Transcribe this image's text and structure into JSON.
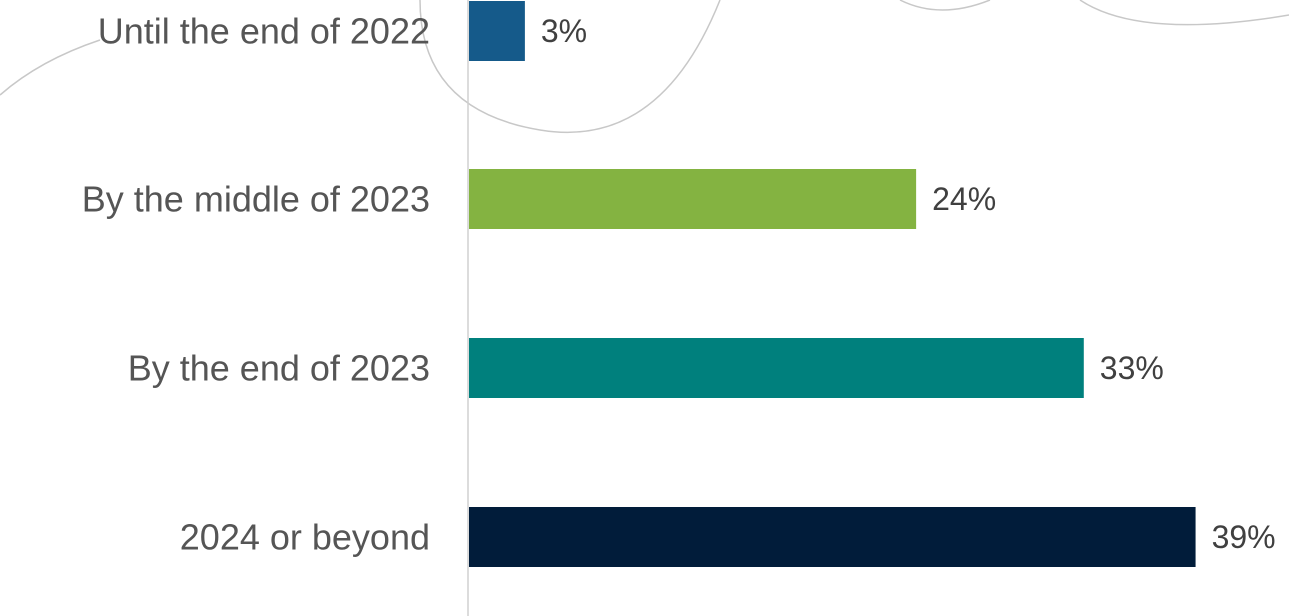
{
  "chart_data": {
    "type": "bar",
    "orientation": "horizontal",
    "categories": [
      "Until the end of 2022",
      "By the middle of 2023",
      "By the end of 2023",
      "2024 or beyond"
    ],
    "values": [
      3,
      24,
      33,
      39
    ],
    "value_labels": [
      "3%",
      "24%",
      "33%",
      "39%"
    ],
    "colors": [
      "#155a8a",
      "#84b341",
      "#00807d",
      "#011c3a"
    ],
    "unit": "%",
    "xlim": [
      0,
      39
    ],
    "grid": false,
    "legend": "none"
  }
}
